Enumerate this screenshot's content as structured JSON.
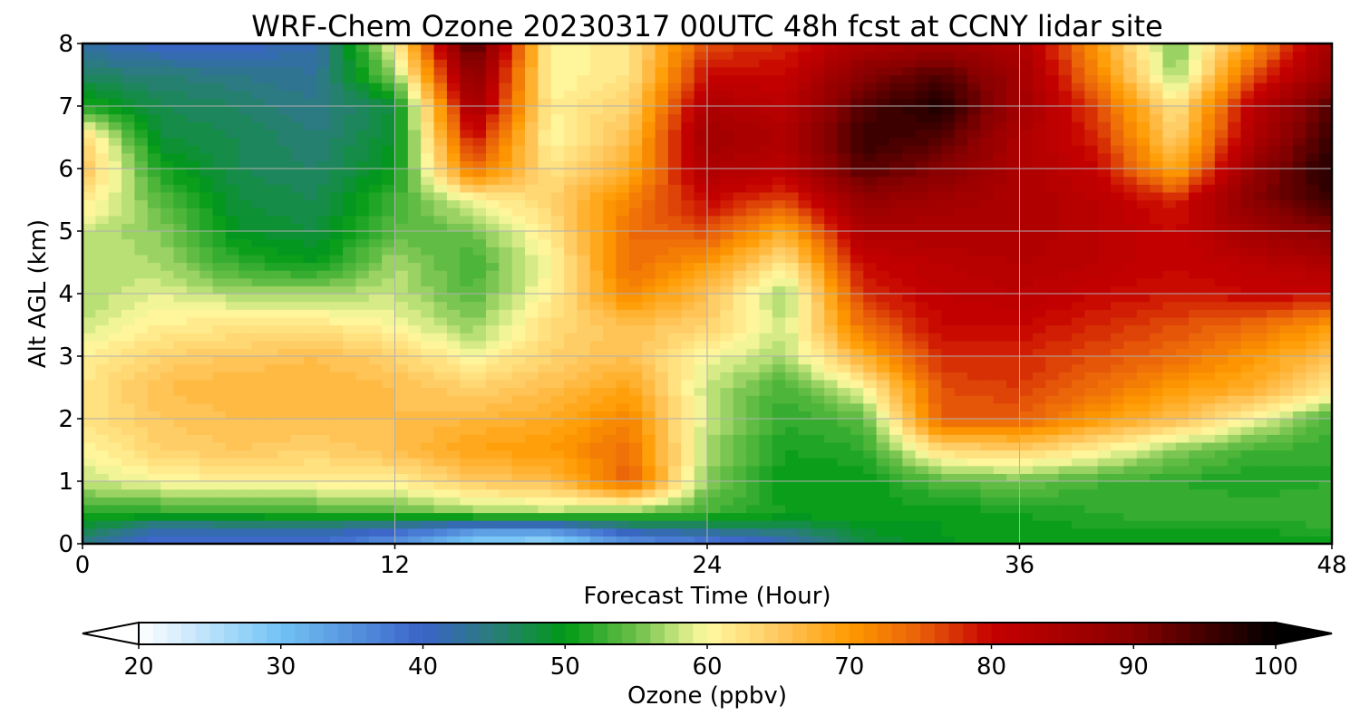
{
  "chart_data": {
    "type": "heatmap",
    "title": "WRF-Chem Ozone  20230317 00UTC 48h fcst at CCNY lidar site",
    "xlabel": "Forecast Time (Hour)",
    "ylabel": "Alt AGL (km)",
    "xlim": [
      0,
      48
    ],
    "ylim": [
      0,
      8
    ],
    "x_ticks": [
      "0",
      "12",
      "24",
      "36",
      "48"
    ],
    "y_ticks": [
      "0",
      "1",
      "2",
      "3",
      "4",
      "5",
      "6",
      "7",
      "8"
    ],
    "grid": true,
    "x": [
      0,
      3,
      6,
      9,
      12,
      15,
      18,
      21,
      24,
      27,
      30,
      33,
      36,
      39,
      42,
      45,
      48
    ],
    "y": [
      0,
      0.25,
      0.5,
      1,
      1.5,
      2,
      2.5,
      3,
      3.5,
      4,
      4.5,
      5,
      5.5,
      6,
      6.5,
      7,
      7.5,
      8
    ],
    "z": [
      [
        44,
        38,
        38,
        39,
        34,
        28,
        26,
        34,
        36,
        40,
        48,
        50,
        50,
        50,
        50,
        50,
        50
      ],
      [
        48,
        42,
        43,
        43,
        41,
        36,
        36,
        43,
        45,
        46,
        49,
        50,
        50,
        51,
        51,
        51,
        52
      ],
      [
        52,
        52,
        52,
        53,
        54,
        56,
        57,
        55,
        53,
        51,
        51,
        50,
        51,
        52,
        53,
        53,
        53
      ],
      [
        58,
        60,
        61,
        61,
        61,
        65,
        66,
        75,
        56,
        50,
        50,
        54,
        55,
        53,
        52,
        51,
        52
      ],
      [
        60,
        64,
        65,
        64,
        66,
        69,
        70,
        74,
        57,
        51,
        52,
        63,
        64,
        61,
        56,
        53,
        52
      ],
      [
        62,
        65,
        66,
        66,
        66,
        67,
        68,
        72,
        58,
        52,
        54,
        75,
        75,
        70,
        66,
        60,
        53
      ],
      [
        62,
        66,
        67,
        67,
        66,
        64,
        66,
        69,
        58,
        53,
        60,
        76,
        77,
        74,
        70,
        68,
        62
      ],
      [
        61,
        64,
        65,
        66,
        64,
        60,
        64,
        66,
        60,
        57,
        68,
        78,
        78,
        76,
        74,
        70,
        66
      ],
      [
        58,
        61,
        62,
        62,
        60,
        56,
        63,
        66,
        64,
        58,
        74,
        80,
        80,
        78,
        76,
        74,
        70
      ],
      [
        57,
        59,
        57,
        57,
        58,
        54,
        61,
        72,
        66,
        56,
        78,
        81,
        82,
        80,
        79,
        80,
        80
      ],
      [
        58,
        57,
        52,
        50,
        57,
        53,
        60,
        74,
        70,
        62,
        80,
        82,
        83,
        82,
        80,
        82,
        84
      ],
      [
        58,
        56,
        49,
        48,
        54,
        55,
        62,
        74,
        76,
        68,
        84,
        84,
        84,
        82,
        80,
        86,
        90
      ],
      [
        62,
        54,
        48,
        47,
        53,
        60,
        64,
        72,
        80,
        76,
        88,
        86,
        84,
        82,
        78,
        90,
        96
      ],
      [
        66,
        51,
        47,
        46,
        50,
        74,
        62,
        68,
        84,
        82,
        94,
        90,
        84,
        80,
        68,
        88,
        98
      ],
      [
        64,
        48,
        47,
        45,
        49,
        80,
        60,
        66,
        86,
        84,
        96,
        94,
        84,
        78,
        64,
        84,
        96
      ],
      [
        52,
        47,
        46,
        44,
        48,
        86,
        61,
        64,
        84,
        82,
        94,
        98,
        86,
        76,
        62,
        82,
        94
      ],
      [
        46,
        45,
        44,
        43,
        56,
        90,
        60,
        62,
        80,
        80,
        90,
        94,
        86,
        72,
        56,
        76,
        88
      ],
      [
        42,
        40,
        40,
        42,
        60,
        96,
        60,
        62,
        76,
        78,
        84,
        86,
        84,
        70,
        55,
        70,
        86
      ]
    ],
    "colorbar": {
      "label": "Ozone  (ppbv)",
      "min": 20,
      "max": 100,
      "step": 1,
      "extend": "both",
      "ticks": [
        "20",
        "30",
        "40",
        "50",
        "60",
        "70",
        "80",
        "90",
        "100"
      ],
      "colors": [
        {
          "v": 20,
          "c": "#ffffff"
        },
        {
          "v": 30,
          "c": "#72c3f5"
        },
        {
          "v": 40,
          "c": "#3a63c8"
        },
        {
          "v": 45,
          "c": "#2a7d7a"
        },
        {
          "v": 50,
          "c": "#009a16"
        },
        {
          "v": 55,
          "c": "#6cc04a"
        },
        {
          "v": 58,
          "c": "#c8e67e"
        },
        {
          "v": 60,
          "c": "#fffaa0"
        },
        {
          "v": 65,
          "c": "#ffc860"
        },
        {
          "v": 70,
          "c": "#ff9a00"
        },
        {
          "v": 75,
          "c": "#e8600a"
        },
        {
          "v": 80,
          "c": "#c60000"
        },
        {
          "v": 90,
          "c": "#880000"
        },
        {
          "v": 100,
          "c": "#000000"
        }
      ]
    }
  }
}
